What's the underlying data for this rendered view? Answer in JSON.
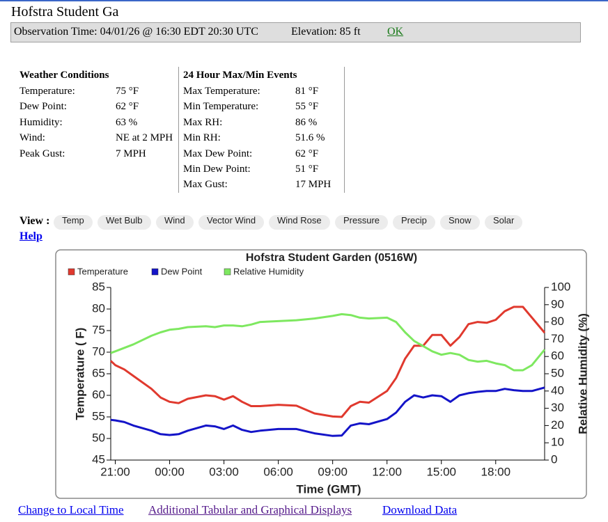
{
  "header": {
    "title": "Hofstra Student Ga"
  },
  "observation": {
    "time": "Observation Time: 04/01/26 @ 16:30 EDT  20:30 UTC",
    "elevation": "Elevation: 85 ft",
    "link": "OK"
  },
  "conditions": {
    "heading": "Weather Conditions",
    "rows": [
      [
        "Temperature:",
        "75 °F"
      ],
      [
        "Dew Point:",
        "62 °F"
      ],
      [
        "Humidity:",
        "63 %"
      ],
      [
        "Wind:",
        "NE at 2 MPH"
      ],
      [
        "Peak Gust:",
        "7 MPH"
      ]
    ]
  },
  "events": {
    "heading": "24 Hour Max/Min Events",
    "rows": [
      [
        "Max Temperature:",
        "81 °F"
      ],
      [
        "Min Temperature:",
        "55 °F"
      ],
      [
        "Max RH:",
        "86 %"
      ],
      [
        "Min RH:",
        "51.6 %"
      ],
      [
        "Max Dew Point:",
        "62 °F"
      ],
      [
        "Min Dew Point:",
        "51 °F"
      ],
      [
        "Max Gust:",
        "17 MPH"
      ]
    ]
  },
  "view": {
    "label": "View :",
    "buttons": [
      "Temp",
      "Wet Bulb",
      "Wind",
      "Vector Wind",
      "Wind Rose",
      "Pressure",
      "Precip",
      "Snow",
      "Solar"
    ],
    "help": "Help"
  },
  "footer": {
    "links": [
      "Change to Local Time",
      "Additional Tabular and Graphical Displays",
      "Download Data"
    ]
  },
  "chart_data": {
    "type": "line",
    "title": "Hofstra Student Garden (0516W)",
    "xlabel": "Time (GMT)",
    "ylabel": "Temperature ( F)",
    "y2label": "Relative Humidity (%)",
    "x": [
      -0.25,
      0,
      0.5,
      1,
      2,
      2.5,
      3,
      3.5,
      4,
      5,
      5.5,
      6,
      6.5,
      7,
      7.5,
      8,
      9,
      10,
      11,
      12,
      12.5,
      13,
      13.5,
      14,
      15,
      15.5,
      16,
      16.5,
      17,
      17.5,
      18,
      18.5,
      19,
      19.5,
      20,
      20.5,
      21,
      21.5,
      22,
      22.5,
      23,
      23.7
    ],
    "xlim": [
      -0.25,
      23.7
    ],
    "xticks": [
      {
        "value": 0,
        "label": "21:00"
      },
      {
        "value": 3,
        "label": "00:00"
      },
      {
        "value": 6,
        "label": "03:00"
      },
      {
        "value": 9,
        "label": "06:00"
      },
      {
        "value": 12,
        "label": "09:00"
      },
      {
        "value": 15,
        "label": "12:00"
      },
      {
        "value": 18,
        "label": "15:00"
      },
      {
        "value": 21,
        "label": "18:00"
      }
    ],
    "ylim": [
      45,
      85
    ],
    "yticks": [
      45,
      50,
      55,
      60,
      65,
      70,
      75,
      80,
      85
    ],
    "y2lim": [
      0,
      100
    ],
    "y2ticks": [
      0,
      10,
      20,
      30,
      40,
      50,
      60,
      70,
      80,
      90,
      100
    ],
    "series": [
      {
        "name": "Temperature",
        "color": "#e0392e",
        "values": [
          68,
          67,
          66,
          64.5,
          61.5,
          59.5,
          58.5,
          58.2,
          59.2,
          60,
          59.8,
          59,
          59.8,
          58.5,
          57.5,
          57.5,
          57.8,
          57.6,
          55.8,
          55.1,
          55,
          57.5,
          58.5,
          58.3,
          61,
          64,
          68.5,
          71.5,
          71.5,
          74,
          74,
          71.5,
          73.5,
          76.5,
          77,
          76.8,
          77.5,
          79.5,
          80.5,
          80.5,
          78,
          74.5
        ]
      },
      {
        "name": "Dew Point",
        "color": "#1414c8",
        "values": [
          54.3,
          54.2,
          53.8,
          53,
          51.8,
          51,
          50.8,
          51,
          51.8,
          53,
          52.8,
          52.2,
          53,
          52,
          51.5,
          51.8,
          52.2,
          52.2,
          51.2,
          50.6,
          50.7,
          53,
          53.5,
          53.3,
          54.5,
          56,
          58.5,
          60,
          59.5,
          60,
          59.8,
          58.5,
          60,
          60.5,
          60.8,
          61,
          61,
          61.5,
          61.2,
          61,
          61,
          61.8
        ]
      },
      {
        "name": "Relative Humidity",
        "color": "#7ee860",
        "axis": "y2",
        "values": [
          62,
          63,
          65,
          67,
          72,
          74,
          75.5,
          76,
          77,
          77.5,
          77,
          78,
          78,
          77.5,
          78.5,
          80,
          80.5,
          81,
          82,
          83.5,
          84.5,
          84,
          82.5,
          82,
          82.5,
          80,
          74,
          69,
          66,
          63,
          61,
          62,
          61,
          58,
          57,
          57.5,
          56,
          55,
          52,
          52,
          55,
          64
        ]
      }
    ]
  }
}
